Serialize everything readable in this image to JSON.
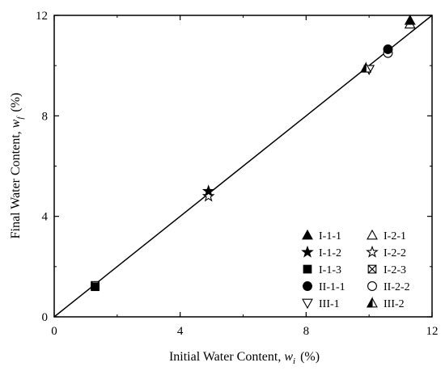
{
  "chart_data": {
    "type": "scatter",
    "xlabel": {
      "main": "Initial Water Content, ",
      "var": "w",
      "sub": "i",
      "unit": "(%)"
    },
    "ylabel": {
      "main": "Final Water Content, ",
      "var": "w",
      "sub": "f",
      "unit": "(%)"
    },
    "xlim": [
      0,
      12
    ],
    "ylim": [
      0,
      12
    ],
    "xticks": [
      0,
      4,
      8,
      12
    ],
    "yticks": [
      0,
      4,
      8,
      12
    ],
    "grid": false,
    "legend_position": "bottom-right",
    "reference_line": {
      "from": [
        0,
        0
      ],
      "to": [
        12,
        12
      ]
    },
    "series": [
      {
        "name": "I-1-1",
        "marker": "triangle-up-filled",
        "points": [
          [
            11.3,
            11.8
          ]
        ]
      },
      {
        "name": "I-2-1",
        "marker": "triangle-up-open",
        "points": [
          [
            11.3,
            11.65
          ]
        ]
      },
      {
        "name": "I-1-2",
        "marker": "star-filled",
        "points": [
          [
            4.9,
            5.0
          ]
        ]
      },
      {
        "name": "I-2-2",
        "marker": "star-open",
        "points": [
          [
            4.9,
            4.8
          ]
        ]
      },
      {
        "name": "I-1-3",
        "marker": "square-filled",
        "points": [
          [
            1.3,
            1.2
          ]
        ]
      },
      {
        "name": "I-2-3",
        "marker": "square-x",
        "points": [
          [
            1.3,
            1.25
          ]
        ]
      },
      {
        "name": "II-1-1",
        "marker": "circle-filled",
        "points": [
          [
            10.6,
            10.65
          ]
        ]
      },
      {
        "name": "II-2-2",
        "marker": "circle-open",
        "points": [
          [
            10.6,
            10.5
          ]
        ]
      },
      {
        "name": "III-1",
        "marker": "triangle-down-open",
        "points": [
          [
            10.0,
            9.85
          ]
        ]
      },
      {
        "name": "III-2",
        "marker": "triangle-up-half",
        "points": [
          [
            9.9,
            9.9
          ]
        ]
      }
    ]
  }
}
